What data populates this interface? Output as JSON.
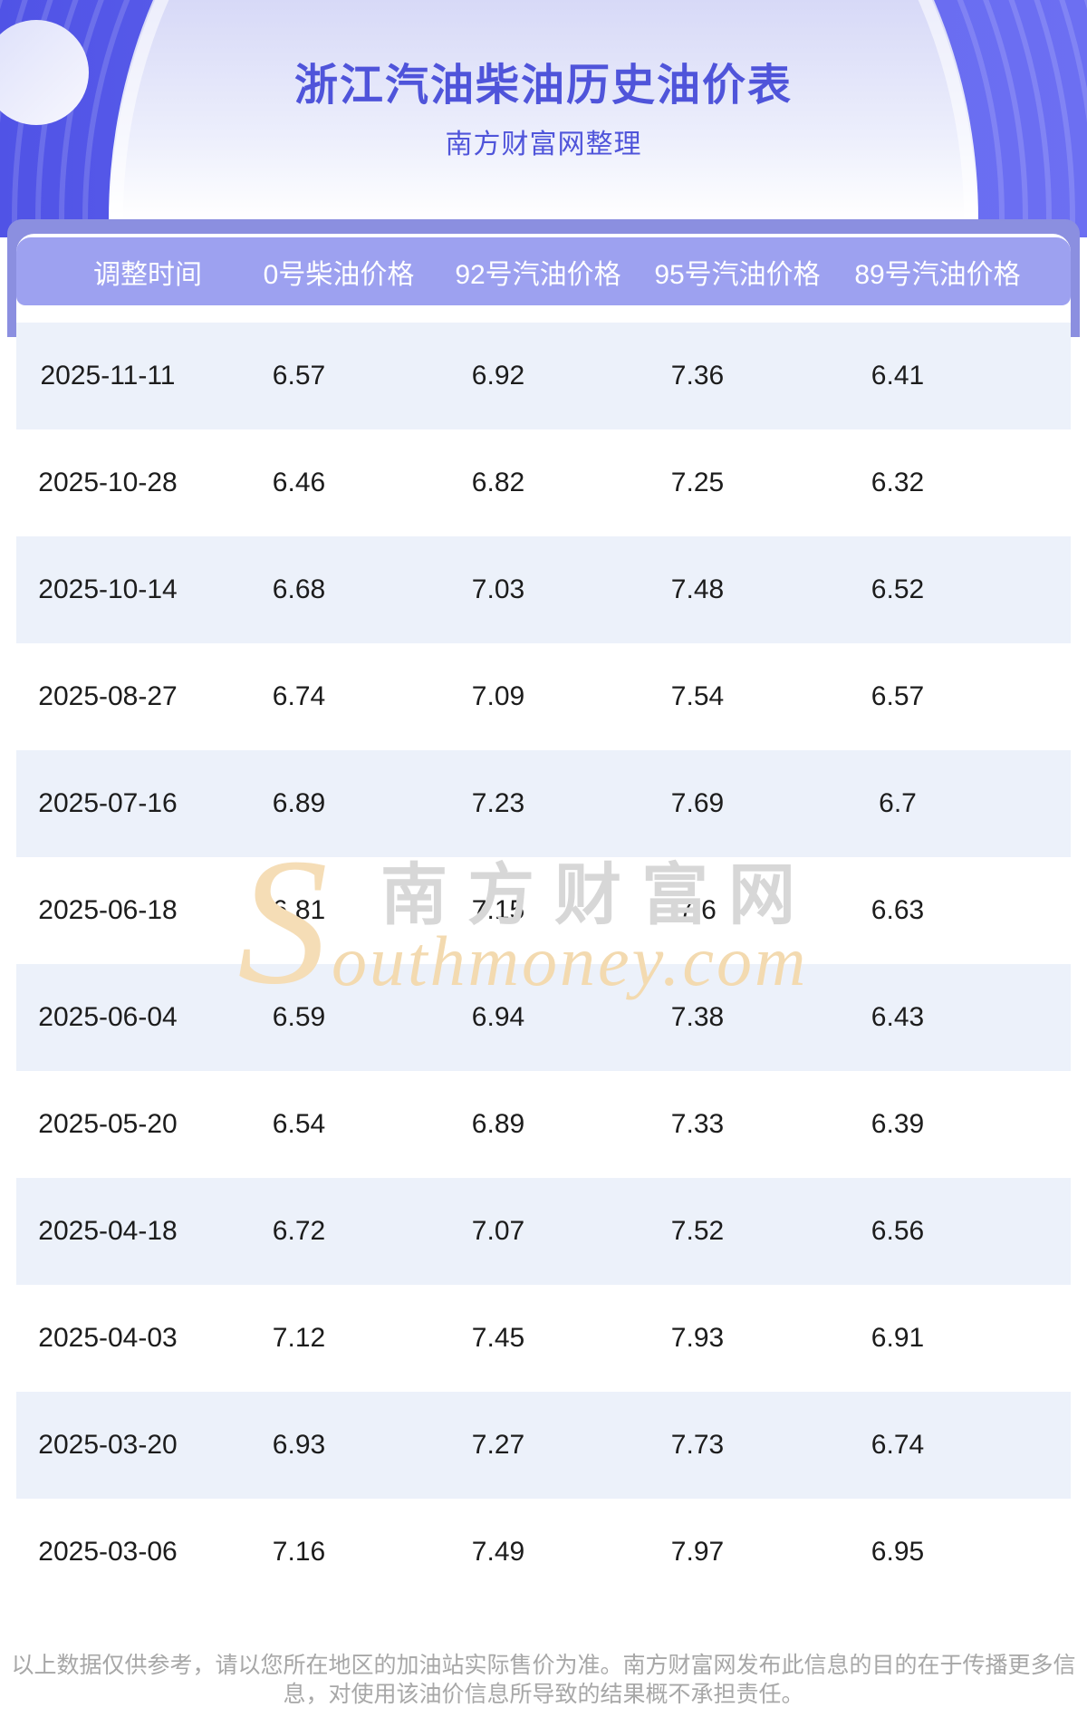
{
  "header": {
    "title": "浙江汽油柴油历史油价表",
    "subtitle": "南方财富网整理"
  },
  "table": {
    "columns": [
      "调整时间",
      "0号柴油价格",
      "92号汽油价格",
      "95号汽油价格",
      "89号汽油价格"
    ],
    "rows": [
      [
        "2025-11-11",
        "6.57",
        "6.92",
        "7.36",
        "6.41"
      ],
      [
        "2025-10-28",
        "6.46",
        "6.82",
        "7.25",
        "6.32"
      ],
      [
        "2025-10-14",
        "6.68",
        "7.03",
        "7.48",
        "6.52"
      ],
      [
        "2025-08-27",
        "6.74",
        "7.09",
        "7.54",
        "6.57"
      ],
      [
        "2025-07-16",
        "6.89",
        "7.23",
        "7.69",
        "6.7"
      ],
      [
        "2025-06-18",
        "6.81",
        "7.15",
        "7.6",
        "6.63"
      ],
      [
        "2025-06-04",
        "6.59",
        "6.94",
        "7.38",
        "6.43"
      ],
      [
        "2025-05-20",
        "6.54",
        "6.89",
        "7.33",
        "6.39"
      ],
      [
        "2025-04-18",
        "6.72",
        "7.07",
        "7.52",
        "6.56"
      ],
      [
        "2025-04-03",
        "7.12",
        "7.45",
        "7.93",
        "6.91"
      ],
      [
        "2025-03-20",
        "6.93",
        "7.27",
        "7.73",
        "6.74"
      ],
      [
        "2025-03-06",
        "7.16",
        "7.49",
        "7.97",
        "6.95"
      ]
    ]
  },
  "watermark": {
    "initial": "S",
    "cn": "南方财富网",
    "en": "outhmoney.com"
  },
  "footer": {
    "disclaimer": "以上数据仅供参考，请以您所在地区的加油站实际售价为准。南方财富网发布此信息的目的在于传播更多信息，对使用该油价信息所导致的结果概不承担责任。"
  },
  "colors": {
    "accent_title": "#4f54da",
    "hero_bg_left": "#5053e6",
    "hero_bg_right": "#6c6ff2",
    "band": "#8b8fe0",
    "table_header_bg": "#9da1f0",
    "table_header_text": "#ffffff",
    "row_alt_bg": "#ecf1fa",
    "cell_text": "#1c1c1c",
    "watermark_tan": "#f3dab0",
    "watermark_gray": "#d7d7d7",
    "footer_text": "#a7a7a7"
  }
}
